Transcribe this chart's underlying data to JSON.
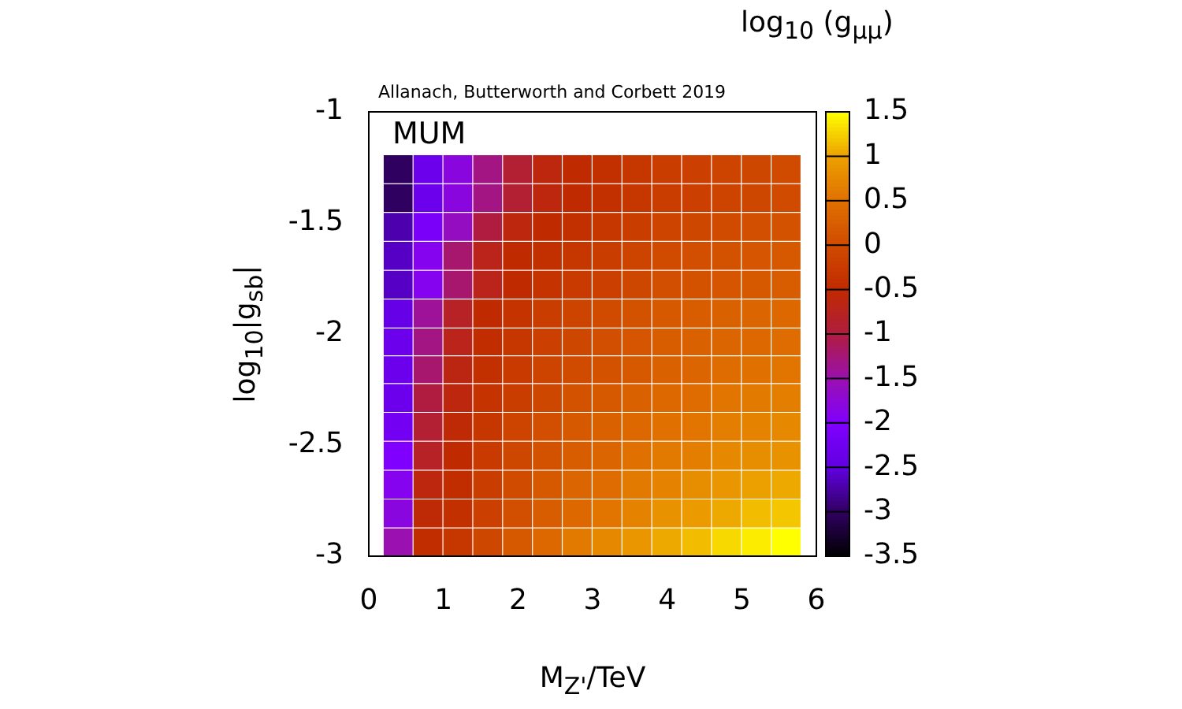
{
  "chart_data": {
    "type": "heatmap",
    "xlabel": "M$_{Z'}$/TeV",
    "ylabel": "log$_{10}$|g$_{sb}$|",
    "clabel": "log$_{10}$ (g$_{μμ}$)",
    "annotations": [
      "Allanach, Butterworth and Corbett 2019",
      "MUM"
    ],
    "x": [
      0.4,
      0.8,
      1.2,
      1.6,
      2.0,
      2.4,
      2.8,
      3.2,
      3.6,
      4.0,
      4.4,
      4.8,
      5.2,
      5.6
    ],
    "y": [
      -1.26,
      -1.39,
      -1.52,
      -1.65,
      -1.78,
      -1.91,
      -2.04,
      -2.16,
      -2.29,
      -2.42,
      -2.55,
      -2.68,
      -2.81,
      -2.94
    ],
    "xlim": [
      0,
      6
    ],
    "xticks": [
      0,
      1,
      2,
      3,
      4,
      5,
      6
    ],
    "ylim": [
      -3,
      -1
    ],
    "yticks": [
      -3,
      -2.5,
      -2,
      -1.5,
      -1
    ],
    "clim": [
      -3.5,
      1.5
    ],
    "cticks": [
      -3.5,
      -3,
      -2.5,
      -2,
      -1.5,
      -1,
      -0.5,
      0,
      0.5,
      1,
      1.5
    ],
    "cells": [
      [
        -3.0,
        -2.3,
        -1.8,
        -1.3,
        -0.9,
        -0.6,
        -0.5,
        -0.4,
        -0.3,
        -0.2,
        -0.15,
        -0.1,
        -0.05,
        0.0
      ],
      [
        -3.0,
        -2.3,
        -1.8,
        -1.3,
        -0.9,
        -0.6,
        -0.5,
        -0.4,
        -0.3,
        -0.2,
        -0.15,
        -0.1,
        -0.05,
        0.0
      ],
      [
        -2.7,
        -2.1,
        -1.6,
        -1.0,
        -0.6,
        -0.5,
        -0.4,
        -0.3,
        -0.2,
        -0.1,
        -0.05,
        0,
        0.05,
        0.1
      ],
      [
        -2.6,
        -1.9,
        -1.2,
        -0.7,
        -0.5,
        -0.4,
        -0.3,
        -0.2,
        -0.1,
        0,
        0.05,
        0.1,
        0.15,
        0.2
      ],
      [
        -2.6,
        -1.9,
        -1.2,
        -0.7,
        -0.5,
        -0.35,
        -0.25,
        -0.15,
        -0.05,
        0.05,
        0.1,
        0.15,
        0.2,
        0.25
      ],
      [
        -2.4,
        -1.4,
        -0.8,
        -0.5,
        -0.35,
        -0.2,
        -0.1,
        0,
        0.1,
        0.2,
        0.25,
        0.3,
        0.35,
        0.4
      ],
      [
        -2.3,
        -1.3,
        -0.7,
        -0.45,
        -0.3,
        -0.15,
        -0.05,
        0.05,
        0.15,
        0.25,
        0.3,
        0.35,
        0.4,
        0.45
      ],
      [
        -2.3,
        -1.2,
        -0.65,
        -0.4,
        -0.25,
        -0.1,
        0,
        0.1,
        0.2,
        0.3,
        0.35,
        0.45,
        0.5,
        0.55
      ],
      [
        -2.3,
        -1.0,
        -0.6,
        -0.35,
        -0.2,
        -0.05,
        0.1,
        0.2,
        0.3,
        0.4,
        0.45,
        0.55,
        0.6,
        0.65
      ],
      [
        -2.2,
        -0.9,
        -0.55,
        -0.3,
        -0.1,
        0.05,
        0.2,
        0.3,
        0.4,
        0.5,
        0.55,
        0.65,
        0.7,
        0.75
      ],
      [
        -2.0,
        -0.8,
        -0.5,
        -0.25,
        -0.05,
        0.1,
        0.25,
        0.35,
        0.5,
        0.6,
        0.65,
        0.75,
        0.8,
        0.85
      ],
      [
        -1.9,
        -0.6,
        -0.45,
        -0.2,
        0,
        0.2,
        0.35,
        0.45,
        0.6,
        0.7,
        0.8,
        0.9,
        1.0,
        1.05
      ],
      [
        -1.8,
        -0.55,
        -0.4,
        -0.15,
        0.05,
        0.25,
        0.4,
        0.55,
        0.7,
        0.85,
        0.95,
        1.05,
        1.15,
        1.2
      ],
      [
        -1.5,
        -0.45,
        -0.3,
        -0.05,
        0.2,
        0.4,
        0.6,
        0.75,
        0.9,
        1.05,
        1.15,
        1.3,
        1.4,
        1.5
      ]
    ]
  }
}
